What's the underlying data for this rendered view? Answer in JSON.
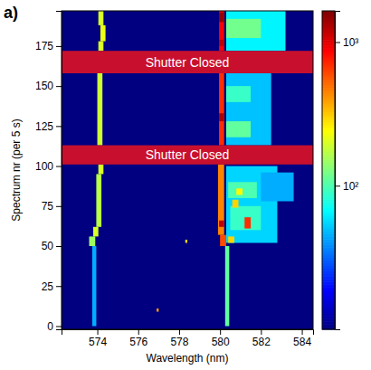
{
  "chart_data": {
    "type": "heatmap",
    "panel_label": "a)",
    "x_label": "Wavelength (nm)",
    "y_label": "Spectrum nr (per 5 s)",
    "xlim": [
      572.25,
      584.55
    ],
    "xticks": [
      574,
      576,
      578,
      580,
      582,
      584
    ],
    "ylim": [
      -2,
      197
    ],
    "yticks": [
      0,
      25,
      50,
      75,
      100,
      125,
      150,
      175
    ],
    "colorbar": {
      "range": [
        10,
        1650
      ],
      "log": true,
      "ticks": [
        {
          "value": 100,
          "label": "10²"
        },
        {
          "value": 1000,
          "label": "10³"
        }
      ]
    },
    "cells": [
      {
        "x": [
          580.3,
          582.8
        ],
        "y": [
          52,
          100
        ],
        "value": 55
      },
      {
        "x": [
          582.0,
          583.6
        ],
        "y": [
          78,
          96
        ],
        "value": 45
      },
      {
        "x": [
          580.3,
          582.5
        ],
        "y": [
          113,
          158
        ],
        "value": 50
      },
      {
        "x": [
          580.3,
          583.2
        ],
        "y": [
          172,
          197
        ],
        "value": 65
      },
      {
        "x": [
          580.5,
          582.0
        ],
        "y": [
          60,
          75
        ],
        "value": 90
      },
      {
        "x": [
          580.4,
          581.8
        ],
        "y": [
          80,
          90
        ],
        "value": 100
      },
      {
        "x": [
          580.3,
          581.5
        ],
        "y": [
          118,
          128
        ],
        "value": 110
      },
      {
        "x": [
          580.3,
          581.5
        ],
        "y": [
          140,
          150
        ],
        "value": 90
      },
      {
        "x": [
          580.3,
          582.0
        ],
        "y": [
          180,
          192
        ],
        "value": 120
      },
      {
        "x": [
          581.2,
          581.5
        ],
        "y": [
          61,
          68
        ],
        "value": 700
      },
      {
        "x": [
          580.6,
          580.9
        ],
        "y": [
          74,
          79
        ],
        "value": 300
      },
      {
        "x": [
          580.8,
          581.1
        ],
        "y": [
          82,
          86
        ],
        "value": 250
      },
      {
        "x": [
          580.4,
          580.7
        ],
        "y": [
          52,
          56
        ],
        "value": 300
      },
      {
        "x": [
          573.75,
          573.95
        ],
        "y": [
          0,
          50
        ],
        "value": 45
      },
      {
        "x": [
          573.6,
          573.9
        ],
        "y": [
          50,
          56
        ],
        "value": 150
      },
      {
        "x": [
          573.8,
          574.05
        ],
        "y": [
          56,
          62
        ],
        "value": 200
      },
      {
        "x": [
          573.95,
          574.2
        ],
        "y": [
          62,
          95
        ],
        "value": 170
      },
      {
        "x": [
          574.05,
          574.3
        ],
        "y": [
          95,
          101
        ],
        "value": 200
      },
      {
        "x": [
          574.0,
          574.25
        ],
        "y": [
          113,
          158
        ],
        "value": 190
      },
      {
        "x": [
          574.05,
          574.3
        ],
        "y": [
          172,
          178
        ],
        "value": 200
      },
      {
        "x": [
          574.15,
          574.4
        ],
        "y": [
          178,
          188
        ],
        "value": 220
      },
      {
        "x": [
          574.05,
          574.3
        ],
        "y": [
          188,
          197
        ],
        "value": 200
      },
      {
        "x": [
          580.25,
          580.45
        ],
        "y": [
          0,
          50
        ],
        "value": 110
      },
      {
        "x": [
          580.0,
          580.3
        ],
        "y": [
          50,
          57
        ],
        "value": 600
      },
      {
        "x": [
          579.9,
          580.2
        ],
        "y": [
          57,
          101
        ],
        "value": 450
      },
      {
        "x": [
          579.95,
          580.2
        ],
        "y": [
          113,
          158
        ],
        "value": 700
      },
      {
        "x": [
          579.95,
          580.2
        ],
        "y": [
          172,
          197
        ],
        "value": 900
      },
      {
        "x": [
          579.95,
          580.2
        ],
        "y": [
          62,
          66
        ],
        "value": 1200
      },
      {
        "x": [
          579.95,
          580.2
        ],
        "y": [
          128,
          133
        ],
        "value": 1300
      },
      {
        "x": [
          579.95,
          580.2
        ],
        "y": [
          190,
          196
        ],
        "value": 1500
      },
      {
        "x": [
          579.95,
          580.2
        ],
        "y": [
          175,
          179
        ],
        "value": 1200
      },
      {
        "x": [
          578.3,
          578.4
        ],
        "y": [
          52,
          54
        ],
        "value": 300
      },
      {
        "x": [
          576.9,
          577.0
        ],
        "y": [
          9,
          11
        ],
        "value": 400
      }
    ],
    "annotations": [
      {
        "text": "Shutter Closed",
        "y": [
          101,
          113
        ]
      },
      {
        "text": "Shutter Closed",
        "y": [
          158,
          172
        ]
      }
    ]
  }
}
